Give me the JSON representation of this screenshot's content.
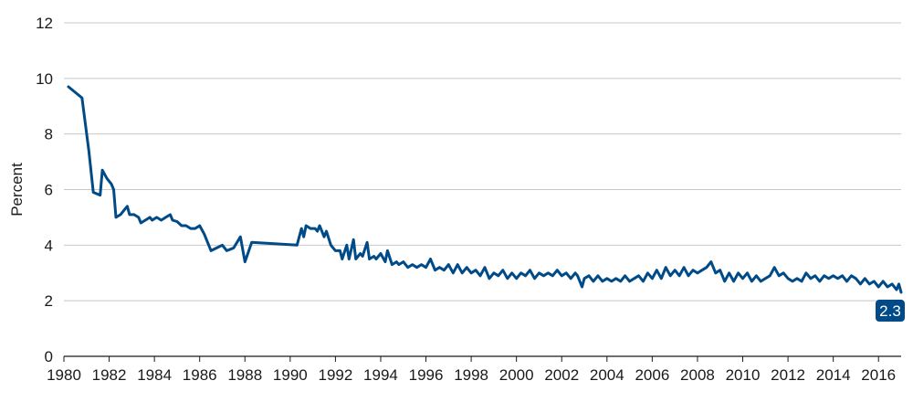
{
  "chart_data": {
    "type": "line",
    "ylabel": "Percent",
    "xlabel": "",
    "ylim": [
      0,
      12
    ],
    "xlim": [
      1980,
      2017
    ],
    "yticks": [
      "0",
      "2",
      "4",
      "6",
      "8",
      "10",
      "12"
    ],
    "xticks": [
      "1980",
      "1982",
      "1984",
      "1986",
      "1988",
      "1990",
      "1992",
      "1994",
      "1996",
      "1998",
      "2000",
      "2002",
      "2004",
      "2006",
      "2008",
      "2010",
      "2012",
      "2014",
      "2016"
    ],
    "grid": true,
    "line_color": "#004b87",
    "last_value_label": "2.3",
    "series": [
      {
        "points": [
          [
            1980.2,
            9.7
          ],
          [
            1980.8,
            9.3
          ],
          [
            1981.1,
            7.4
          ],
          [
            1981.3,
            5.9
          ],
          [
            1981.6,
            5.8
          ],
          [
            1981.7,
            6.7
          ],
          [
            1981.9,
            6.4
          ],
          [
            1982.1,
            6.2
          ],
          [
            1982.2,
            6.0
          ],
          [
            1982.3,
            5.0
          ],
          [
            1982.5,
            5.1
          ],
          [
            1982.7,
            5.3
          ],
          [
            1982.8,
            5.4
          ],
          [
            1982.9,
            5.1
          ],
          [
            1983.1,
            5.1
          ],
          [
            1983.3,
            5.0
          ],
          [
            1983.4,
            4.8
          ],
          [
            1983.6,
            4.9
          ],
          [
            1983.8,
            5.0
          ],
          [
            1983.9,
            4.9
          ],
          [
            1984.1,
            5.0
          ],
          [
            1984.3,
            4.9
          ],
          [
            1984.5,
            5.0
          ],
          [
            1984.7,
            5.1
          ],
          [
            1984.8,
            4.9
          ],
          [
            1985.0,
            4.85
          ],
          [
            1985.2,
            4.7
          ],
          [
            1985.4,
            4.7
          ],
          [
            1985.6,
            4.6
          ],
          [
            1985.8,
            4.6
          ],
          [
            1986.0,
            4.7
          ],
          [
            1986.2,
            4.4
          ],
          [
            1986.5,
            3.8
          ],
          [
            1987.0,
            4.0
          ],
          [
            1987.2,
            3.8
          ],
          [
            1987.5,
            3.9
          ],
          [
            1987.8,
            4.3
          ],
          [
            1988.0,
            3.4
          ],
          [
            1988.3,
            4.1
          ],
          [
            1990.3,
            4.0
          ],
          [
            1990.5,
            4.6
          ],
          [
            1990.6,
            4.3
          ],
          [
            1990.7,
            4.7
          ],
          [
            1990.9,
            4.6
          ],
          [
            1991.1,
            4.6
          ],
          [
            1991.2,
            4.5
          ],
          [
            1991.3,
            4.7
          ],
          [
            1991.5,
            4.3
          ],
          [
            1991.6,
            4.5
          ],
          [
            1991.8,
            4.0
          ],
          [
            1992.0,
            3.8
          ],
          [
            1992.2,
            3.8
          ],
          [
            1992.3,
            3.5
          ],
          [
            1992.5,
            4.0
          ],
          [
            1992.6,
            3.5
          ],
          [
            1992.8,
            4.2
          ],
          [
            1992.9,
            3.5
          ],
          [
            1993.1,
            3.7
          ],
          [
            1993.2,
            3.6
          ],
          [
            1993.4,
            4.1
          ],
          [
            1993.5,
            3.5
          ],
          [
            1993.7,
            3.6
          ],
          [
            1993.8,
            3.5
          ],
          [
            1994.0,
            3.7
          ],
          [
            1994.2,
            3.4
          ],
          [
            1994.3,
            3.8
          ],
          [
            1994.5,
            3.3
          ],
          [
            1994.7,
            3.4
          ],
          [
            1994.8,
            3.3
          ],
          [
            1995.0,
            3.4
          ],
          [
            1995.2,
            3.2
          ],
          [
            1995.4,
            3.3
          ],
          [
            1995.6,
            3.2
          ],
          [
            1995.8,
            3.3
          ],
          [
            1996.0,
            3.2
          ],
          [
            1996.2,
            3.5
          ],
          [
            1996.4,
            3.1
          ],
          [
            1996.6,
            3.2
          ],
          [
            1996.8,
            3.1
          ],
          [
            1997.0,
            3.3
          ],
          [
            1997.2,
            3.0
          ],
          [
            1997.4,
            3.3
          ],
          [
            1997.6,
            3.0
          ],
          [
            1997.8,
            3.2
          ],
          [
            1998.0,
            3.0
          ],
          [
            1998.2,
            3.1
          ],
          [
            1998.4,
            2.9
          ],
          [
            1998.6,
            3.2
          ],
          [
            1998.8,
            2.8
          ],
          [
            1999.0,
            3.0
          ],
          [
            1999.2,
            2.9
          ],
          [
            1999.4,
            3.1
          ],
          [
            1999.6,
            2.8
          ],
          [
            1999.8,
            3.0
          ],
          [
            2000.0,
            2.8
          ],
          [
            2000.2,
            3.0
          ],
          [
            2000.4,
            2.9
          ],
          [
            2000.6,
            3.1
          ],
          [
            2000.8,
            2.8
          ],
          [
            2001.0,
            3.0
          ],
          [
            2001.2,
            2.9
          ],
          [
            2001.4,
            3.0
          ],
          [
            2001.6,
            2.9
          ],
          [
            2001.8,
            3.1
          ],
          [
            2002.0,
            2.9
          ],
          [
            2002.2,
            3.0
          ],
          [
            2002.4,
            2.8
          ],
          [
            2002.6,
            3.0
          ],
          [
            2002.7,
            2.9
          ],
          [
            2002.9,
            2.5
          ],
          [
            2003.0,
            2.8
          ],
          [
            2003.2,
            2.9
          ],
          [
            2003.4,
            2.7
          ],
          [
            2003.6,
            2.9
          ],
          [
            2003.8,
            2.7
          ],
          [
            2004.0,
            2.8
          ],
          [
            2004.2,
            2.7
          ],
          [
            2004.4,
            2.8
          ],
          [
            2004.6,
            2.7
          ],
          [
            2004.8,
            2.9
          ],
          [
            2005.0,
            2.7
          ],
          [
            2005.2,
            2.8
          ],
          [
            2005.4,
            2.9
          ],
          [
            2005.6,
            2.7
          ],
          [
            2005.8,
            3.0
          ],
          [
            2006.0,
            2.8
          ],
          [
            2006.2,
            3.1
          ],
          [
            2006.4,
            2.8
          ],
          [
            2006.6,
            3.2
          ],
          [
            2006.8,
            2.9
          ],
          [
            2007.0,
            3.1
          ],
          [
            2007.2,
            2.9
          ],
          [
            2007.4,
            3.2
          ],
          [
            2007.6,
            2.9
          ],
          [
            2007.8,
            3.1
          ],
          [
            2008.0,
            3.0
          ],
          [
            2008.2,
            3.1
          ],
          [
            2008.4,
            3.2
          ],
          [
            2008.6,
            3.4
          ],
          [
            2008.8,
            3.0
          ],
          [
            2009.0,
            3.1
          ],
          [
            2009.2,
            2.7
          ],
          [
            2009.4,
            3.0
          ],
          [
            2009.6,
            2.7
          ],
          [
            2009.8,
            3.0
          ],
          [
            2010.0,
            2.8
          ],
          [
            2010.2,
            3.0
          ],
          [
            2010.4,
            2.7
          ],
          [
            2010.6,
            2.9
          ],
          [
            2010.8,
            2.7
          ],
          [
            2011.0,
            2.8
          ],
          [
            2011.2,
            2.9
          ],
          [
            2011.4,
            3.2
          ],
          [
            2011.6,
            2.9
          ],
          [
            2011.8,
            3.0
          ],
          [
            2012.0,
            2.8
          ],
          [
            2012.2,
            2.7
          ],
          [
            2012.4,
            2.8
          ],
          [
            2012.6,
            2.7
          ],
          [
            2012.8,
            3.0
          ],
          [
            2013.0,
            2.8
          ],
          [
            2013.2,
            2.9
          ],
          [
            2013.4,
            2.7
          ],
          [
            2013.6,
            2.9
          ],
          [
            2013.8,
            2.8
          ],
          [
            2014.0,
            2.9
          ],
          [
            2014.2,
            2.8
          ],
          [
            2014.4,
            2.9
          ],
          [
            2014.6,
            2.7
          ],
          [
            2014.8,
            2.9
          ],
          [
            2015.0,
            2.8
          ],
          [
            2015.2,
            2.6
          ],
          [
            2015.4,
            2.8
          ],
          [
            2015.6,
            2.6
          ],
          [
            2015.8,
            2.7
          ],
          [
            2016.0,
            2.5
          ],
          [
            2016.2,
            2.7
          ],
          [
            2016.4,
            2.5
          ],
          [
            2016.6,
            2.6
          ],
          [
            2016.8,
            2.4
          ],
          [
            2016.9,
            2.6
          ],
          [
            2017.0,
            2.3
          ]
        ]
      }
    ]
  }
}
